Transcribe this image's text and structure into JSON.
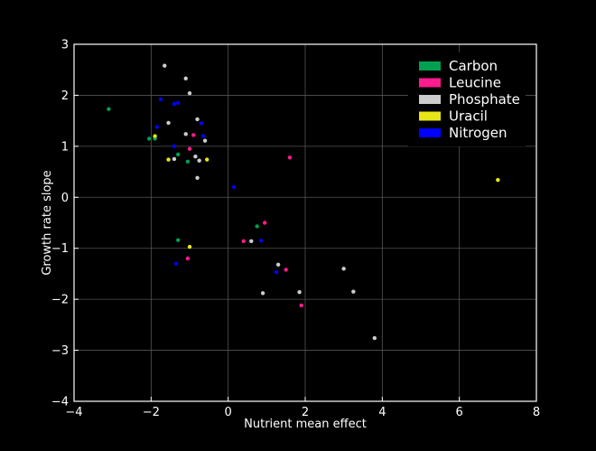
{
  "chart_data": {
    "type": "scatter",
    "xlabel": "Nutrient mean effect",
    "ylabel": "Growth rate slope",
    "xlim": [
      -4,
      8
    ],
    "ylim": [
      -4,
      3
    ],
    "xticks": [
      "−4",
      "−2",
      "0",
      "2",
      "4",
      "6",
      "8"
    ],
    "yticks": [
      "3",
      "2",
      "1",
      "0",
      "−1",
      "−2",
      "−3",
      "−4"
    ],
    "grid": true,
    "legend_position": "top-right",
    "series": [
      {
        "name": "Carbon",
        "color": "#00a050",
        "points": [
          [
            -3.1,
            1.73
          ],
          [
            -2.05,
            1.15
          ],
          [
            -1.9,
            1.15
          ],
          [
            -1.3,
            0.84
          ],
          [
            -1.05,
            0.7
          ],
          [
            -1.3,
            -0.84
          ],
          [
            0.75,
            -0.57
          ]
        ]
      },
      {
        "name": "Leucine",
        "color": "#ff1c8c",
        "points": [
          [
            -0.9,
            1.22
          ],
          [
            -1.0,
            0.95
          ],
          [
            -1.05,
            -1.2
          ],
          [
            0.4,
            -0.86
          ],
          [
            0.95,
            -0.5
          ],
          [
            1.5,
            -1.42
          ],
          [
            1.6,
            0.78
          ],
          [
            1.9,
            -2.12
          ]
        ]
      },
      {
        "name": "Phosphate",
        "color": "#cccccc",
        "points": [
          [
            -1.65,
            2.58
          ],
          [
            -1.1,
            2.33
          ],
          [
            -1.0,
            2.04
          ],
          [
            -1.55,
            1.46
          ],
          [
            -0.8,
            1.53
          ],
          [
            -1.1,
            1.24
          ],
          [
            -0.6,
            1.11
          ],
          [
            -0.85,
            0.8
          ],
          [
            -0.75,
            0.72
          ],
          [
            -1.4,
            0.75
          ],
          [
            -0.8,
            0.38
          ],
          [
            0.6,
            -0.86
          ],
          [
            1.3,
            -1.32
          ],
          [
            0.9,
            -1.88
          ],
          [
            1.85,
            -1.86
          ],
          [
            3.0,
            -1.4
          ],
          [
            3.25,
            -1.85
          ],
          [
            3.8,
            -2.76
          ]
        ]
      },
      {
        "name": "Uracil",
        "color": "#e6e619",
        "points": [
          [
            -1.9,
            1.2
          ],
          [
            -1.55,
            0.74
          ],
          [
            -0.55,
            0.74
          ],
          [
            -1.0,
            -0.97
          ],
          [
            7.0,
            0.34
          ]
        ]
      },
      {
        "name": "Nitrogen",
        "color": "#0000ff",
        "points": [
          [
            -1.75,
            1.92
          ],
          [
            -1.4,
            1.83
          ],
          [
            -1.3,
            1.85
          ],
          [
            -1.85,
            1.38
          ],
          [
            -0.65,
            1.2
          ],
          [
            -0.7,
            1.45
          ],
          [
            -1.4,
            1.0
          ],
          [
            0.15,
            0.2
          ],
          [
            0.85,
            -0.85
          ],
          [
            1.25,
            -1.47
          ],
          [
            -1.35,
            -1.3
          ]
        ]
      }
    ]
  }
}
